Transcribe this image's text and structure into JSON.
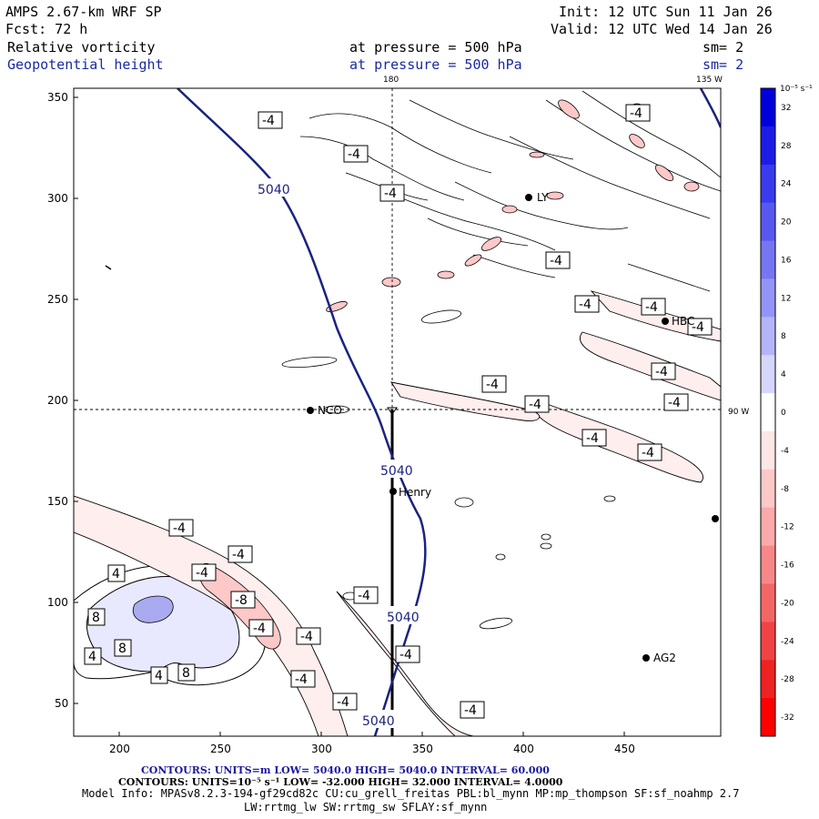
{
  "header": {
    "model": "AMPS 2.67-km WRF SP",
    "init": "Init: 12 UTC Sun 11 Jan 26",
    "fcst": "Fcst:   72 h",
    "valid": "Valid: 12 UTC Wed 14 Jan 26",
    "field1": "Relative vorticity",
    "field1_pressure": "at pressure =  500 hPa",
    "field1_sm": "sm= 2",
    "field2": "Geopotential height",
    "field2_pressure": "at pressure =  500 hPa",
    "field2_sm": "sm= 2"
  },
  "map": {
    "lon_top_label": "180",
    "lon_right_label": "135 W",
    "lat_right_label": "90 W",
    "x_ticks": [
      "200",
      "250",
      "300",
      "350",
      "400",
      "450"
    ],
    "y_ticks": [
      "350",
      "300",
      "250",
      "200",
      "150",
      "100",
      "50"
    ],
    "stations": [
      {
        "name": "NCO",
        "x": 293,
        "y": 195
      },
      {
        "name": "Henry",
        "x": 333,
        "y": 155
      },
      {
        "name": "AG2",
        "x": 460,
        "y": 72
      },
      {
        "name": "HBC",
        "x": 468,
        "y": 239
      },
      {
        "name": "LY",
        "x": 401,
        "y": 300
      }
    ],
    "height_contour_value": "5040",
    "vort_labels": {
      "neg4": "-4",
      "neg8": "-8",
      "pos4": "4",
      "pos8": "8"
    },
    "colors": {
      "height_line": "#1a237e",
      "pos_fill_light": "#e8e8ff",
      "pos_fill_mid": "#aaaaf0",
      "neg_fill_light": "#ffeeee",
      "neg_fill_mid": "#ffc8c8"
    }
  },
  "colorbar": {
    "units": "10^-5 s^-1",
    "units_label": "10⁻⁵ s⁻¹",
    "labels": [
      "32",
      "28",
      "24",
      "20",
      "16",
      "12",
      "8",
      "4",
      "0",
      "-4",
      "-8",
      "-12",
      "-16",
      "-20",
      "-24",
      "-28",
      "-32"
    ],
    "colors": [
      "#0000dd",
      "#1c1ce6",
      "#3a3aee",
      "#5858f0",
      "#7676f4",
      "#9494f8",
      "#b4b4fa",
      "#d6d6fd",
      "#ffffff",
      "#fde6e6",
      "#fcc8c8",
      "#faaaaa",
      "#f88888",
      "#f46666",
      "#f04444",
      "#ee2222",
      "#ff0000"
    ]
  },
  "footer": {
    "contours_height": "CONTOURS:  UNITS=m  LOW=  5040.0        HIGH=  5040.0        INTERVAL=   60.000",
    "contours_vort": "CONTOURS:  UNITS=10⁻⁵ s⁻¹   LOW=  -32.000        HIGH=  32.000        INTERVAL=   4.0000",
    "model_info": "Model Info: MPASv8.2.3-194-gf29cd82c CU:cu_grell_freitas PBL:bl_mynn MP:mp_thompson SF:sf_noahmp 2.7",
    "model_info2": "LW:rrtmg_lw SW:rrtmg_sw SFLAY:sf_mynn"
  }
}
